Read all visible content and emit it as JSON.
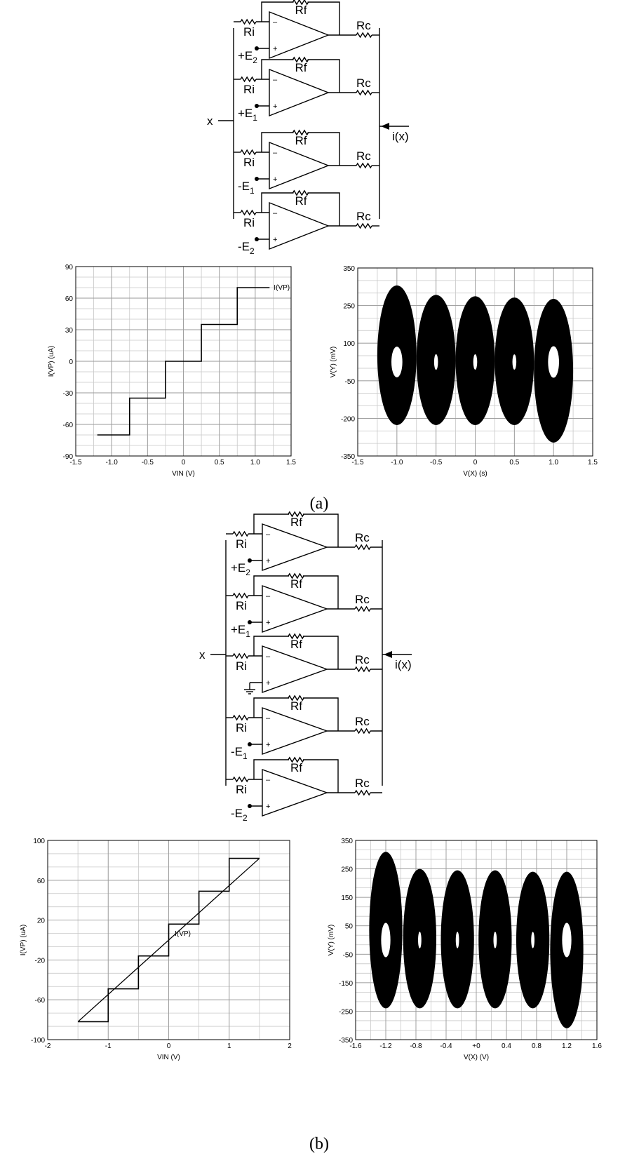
{
  "figure_a": {
    "caption": "(a)",
    "circuit": {
      "input_label": "x",
      "output_label": "i(x)",
      "resistor_feedback": "Rf",
      "resistor_input": "Ri",
      "resistor_coupling": "Rc",
      "sources": [
        "+E2",
        "+E1",
        "-E1",
        "-E2"
      ]
    }
  },
  "figure_b": {
    "caption": "(b)",
    "circuit": {
      "input_label": "x",
      "output_label": "i(x)",
      "resistor_feedback": "Rf",
      "resistor_input": "Ri",
      "resistor_coupling": "Rc",
      "sources": [
        "+E2",
        "+E1",
        "GND",
        "-E1",
        "-E2"
      ]
    }
  },
  "chart_data": [
    {
      "id": "a-left",
      "type": "line",
      "xlabel": "VIN (V)",
      "ylabel": "I(VP) (uA)",
      "series_label": "I(VP)",
      "xlim": [
        -1.5,
        1.5
      ],
      "ylim": [
        -90,
        90
      ],
      "xticks": [
        "-1.5",
        "-1.0",
        "-0.5",
        "0",
        "0.5",
        "1.0",
        "1.5"
      ],
      "yticks": [
        "-90",
        "-60",
        "-30",
        "0",
        "30",
        "60",
        "90"
      ],
      "x": [
        -1.2,
        -0.75,
        -0.75,
        -0.25,
        -0.25,
        0.25,
        0.25,
        0.75,
        0.75,
        1.2
      ],
      "y": [
        -70,
        -70,
        -35,
        -35,
        0,
        0,
        35,
        35,
        70,
        70
      ]
    },
    {
      "id": "a-right",
      "type": "scatter",
      "xlabel": "V(X) (s)",
      "ylabel": "V(Y) (mV)",
      "xlim": [
        -1.5,
        1.5
      ],
      "ylim": [
        -350,
        350
      ],
      "xticks": [
        "-1.5",
        "-1.0",
        "-0.5",
        "0",
        "0.5",
        "1.0",
        "1.5"
      ],
      "yticks": [
        "-350",
        "-200",
        "-50",
        "100",
        "250",
        "350"
      ],
      "attractor_centers": [
        -1.0,
        -0.5,
        0.0,
        0.5,
        1.0
      ],
      "attractor_halfwidth": 0.25,
      "attractor_top": [
        285,
        250,
        245,
        240,
        235
      ],
      "attractor_bottom": [
        -235,
        -235,
        -235,
        -235,
        -300
      ]
    },
    {
      "id": "b-left",
      "type": "line",
      "xlabel": "VIN (V)",
      "ylabel": "I(VP) (uA)",
      "series_label": "I(VP)",
      "xlim": [
        -2,
        2
      ],
      "ylim": [
        -100,
        100
      ],
      "xticks": [
        "-2",
        "-1",
        "0",
        "1",
        "2"
      ],
      "yticks": [
        "-100",
        "-60",
        "-20",
        "20",
        "60",
        "100"
      ],
      "x": [
        -1.5,
        -1.0,
        -1.0,
        -0.5,
        -0.5,
        0.0,
        0.0,
        0.5,
        0.5,
        1.0,
        1.0,
        1.5
      ],
      "y": [
        -82,
        -82,
        -49,
        -49,
        -16,
        -16,
        16,
        16,
        49,
        49,
        82,
        82
      ],
      "x2": [
        -1.5,
        1.5
      ],
      "y2": [
        -82,
        82
      ]
    },
    {
      "id": "b-right",
      "type": "scatter",
      "xlabel": "V(X) (V)",
      "ylabel": "V(Y) (mV)",
      "xlim": [
        -1.6,
        1.6
      ],
      "ylim": [
        -350,
        350
      ],
      "xticks": [
        "-1.6",
        "-1.2",
        "-0.8",
        "-0.4",
        "+0",
        "0.4",
        "0.8",
        "1.2",
        "1.6"
      ],
      "yticks": [
        "-350",
        "-250",
        "-150",
        "-50",
        "50",
        "150",
        "250",
        "350"
      ],
      "attractor_centers": [
        -1.2,
        -0.75,
        -0.25,
        0.25,
        0.75,
        1.2
      ],
      "attractor_halfwidth": 0.22,
      "attractor_top": [
        310,
        250,
        245,
        245,
        240,
        240
      ],
      "attractor_bottom": [
        -240,
        -240,
        -240,
        -240,
        -240,
        -310
      ]
    }
  ]
}
